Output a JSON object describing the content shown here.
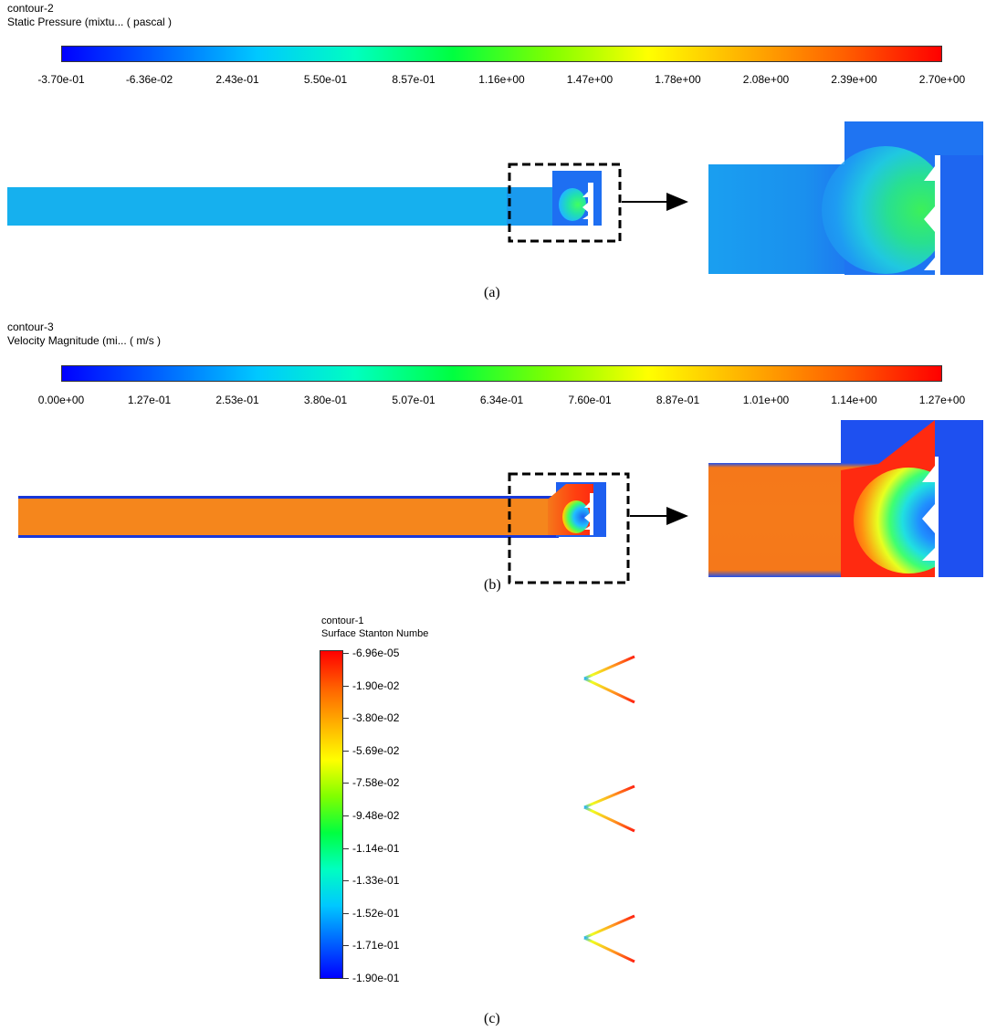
{
  "panel_a": {
    "contour_name": "contour-2",
    "variable": "Static Pressure (mixtu... ( pascal )",
    "ticks": [
      "-3.70e-01",
      "-6.36e-02",
      "2.43e-01",
      "5.50e-01",
      "8.57e-01",
      "1.16e+00",
      "1.47e+00",
      "1.78e+00",
      "2.08e+00",
      "2.39e+00",
      "2.70e+00"
    ],
    "caption": "(a)"
  },
  "panel_b": {
    "contour_name": "contour-3",
    "variable": "Velocity Magnitude (mi... ( m/s )",
    "ticks": [
      "0.00e+00",
      "1.27e-01",
      "2.53e-01",
      "3.80e-01",
      "5.07e-01",
      "6.34e-01",
      "7.60e-01",
      "8.87e-01",
      "1.01e+00",
      "1.14e+00",
      "1.27e+00"
    ],
    "caption": "(b)"
  },
  "panel_c": {
    "contour_name": "contour-1",
    "variable": "Surface Stanton Numbe",
    "ticks": [
      "-6.96e-05",
      "-1.90e-02",
      "-3.80e-02",
      "-5.69e-02",
      "-7.58e-02",
      "-9.48e-02",
      "-1.14e-01",
      "-1.33e-01",
      "-1.52e-01",
      "-1.71e-01",
      "-1.90e-01"
    ],
    "caption": "(c)"
  },
  "colors": {
    "rainbow": [
      "#0000ff",
      "#0064ff",
      "#00c8ff",
      "#00ffc0",
      "#00ff40",
      "#80ff00",
      "#ffff00",
      "#ffb000",
      "#ff6000",
      "#ff0000"
    ],
    "pressure_base": "#1aa4ef",
    "velocity_base": "#f5781a",
    "blue_region": "#1e5ff0"
  }
}
